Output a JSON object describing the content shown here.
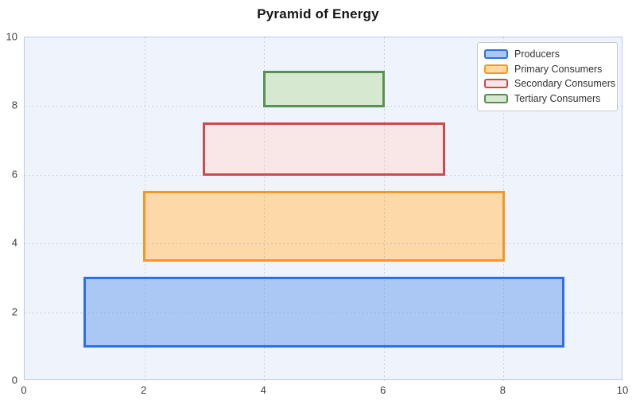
{
  "chart_data": {
    "type": "bar",
    "title": "Pyramid of Energy",
    "xlabel": "",
    "ylabel": "",
    "xlim": [
      0,
      10
    ],
    "ylim": [
      0,
      10
    ],
    "x_ticks": [
      0,
      2,
      4,
      6,
      8,
      10
    ],
    "y_ticks": [
      0,
      2,
      4,
      6,
      8,
      10
    ],
    "grid": true,
    "grid_style": "dotted",
    "legend_position": "top-right",
    "series": [
      {
        "name": "Producers",
        "x_range": [
          1,
          9
        ],
        "y_range": [
          1,
          3
        ],
        "fill": "#abc7f3",
        "border": "#2d70e7"
      },
      {
        "name": "Primary Consumers",
        "x_range": [
          2,
          8
        ],
        "y_range": [
          3.5,
          5.5
        ],
        "fill": "#fdd8a8",
        "border": "#f7991d"
      },
      {
        "name": "Secondary Consumers",
        "x_range": [
          3,
          7
        ],
        "y_range": [
          6,
          7.5
        ],
        "fill": "#f9e7e8",
        "border": "#c94b4b"
      },
      {
        "name": "Tertiary Consumers",
        "x_range": [
          4,
          6
        ],
        "y_range": [
          8,
          9
        ],
        "fill": "#d7e8d0",
        "border": "#57924d"
      }
    ],
    "legend": [
      "Producers",
      "Primary Consumers",
      "Secondary Consumers",
      "Tertiary Consumers"
    ]
  },
  "colors": {
    "plot_background": "#eff3fc",
    "plot_border": "#b9cbf0",
    "title_text": "#161616",
    "tick_text": "#3d3d3d",
    "legend_border": "#c9c9c9",
    "legend_background": "#ffffff",
    "legend_text": "#333333"
  }
}
